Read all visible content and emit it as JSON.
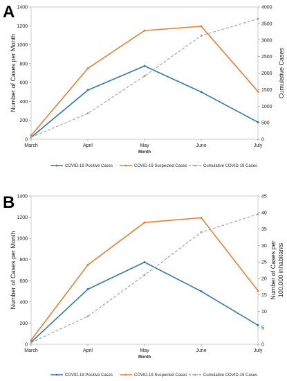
{
  "chart_data": [
    {
      "panel": "A",
      "type": "line",
      "categories": [
        "March",
        "April",
        "May",
        "June",
        "July"
      ],
      "xlabel": "Month",
      "ylabel_left": "Number of Cases per Month",
      "ylabel_right": "Cumulative  Cases",
      "ylim_left": [
        0,
        1400
      ],
      "yticks_left": [
        0,
        200,
        400,
        600,
        800,
        1000,
        1200,
        1400
      ],
      "ylim_right": [
        0,
        4000
      ],
      "yticks_right": [
        0,
        500,
        1000,
        1500,
        2000,
        2500,
        3000,
        3500,
        4000
      ],
      "legend_position": "bottom",
      "grid": false,
      "series": [
        {
          "name": "COVID-19 Positive Cases",
          "axis": "left",
          "color": "#2e75b6",
          "dash": false,
          "values": [
            20,
            520,
            775,
            500,
            180
          ]
        },
        {
          "name": "COVID-19 Suspected Cases",
          "axis": "left",
          "color": "#ed7d31",
          "dash": false,
          "values": [
            40,
            750,
            1150,
            1195,
            505
          ]
        },
        {
          "name": "Cumulative COVID-19 Cases",
          "axis": "right",
          "color": "#a5a5a5",
          "dash": true,
          "values": [
            60,
            780,
            1910,
            3130,
            3640
          ]
        }
      ]
    },
    {
      "panel": "B",
      "type": "line",
      "categories": [
        "March",
        "April",
        "May",
        "June",
        "July"
      ],
      "xlabel": "Month",
      "ylabel_left": "Number of Cases per Month",
      "ylabel_right": "Number of Cases per 100,000 inhabitants",
      "ylabel_right_lines": [
        "Number of Cases per",
        "100,000 inhabitants"
      ],
      "ylim_left": [
        0,
        1400
      ],
      "yticks_left": [
        0,
        200,
        400,
        600,
        800,
        1000,
        1200,
        1400
      ],
      "ylim_right": [
        0,
        45
      ],
      "yticks_right": [
        0,
        5,
        10,
        15,
        20,
        25,
        30,
        35,
        40,
        45
      ],
      "legend_position": "bottom",
      "grid": false,
      "series": [
        {
          "name": "COVID-19 Positive Cases",
          "axis": "left",
          "color": "#2e75b6",
          "dash": false,
          "values": [
            20,
            520,
            775,
            500,
            180
          ]
        },
        {
          "name": "COVID-19 Suspected Cases",
          "axis": "left",
          "color": "#ed7d31",
          "dash": false,
          "values": [
            40,
            750,
            1150,
            1195,
            505
          ]
        },
        {
          "name": "Cumulative COVID-19 Cases",
          "axis": "right",
          "color": "#a5a5a5",
          "dash": true,
          "values": [
            0.5,
            8.5,
            21,
            34,
            39.5
          ]
        }
      ]
    }
  ]
}
